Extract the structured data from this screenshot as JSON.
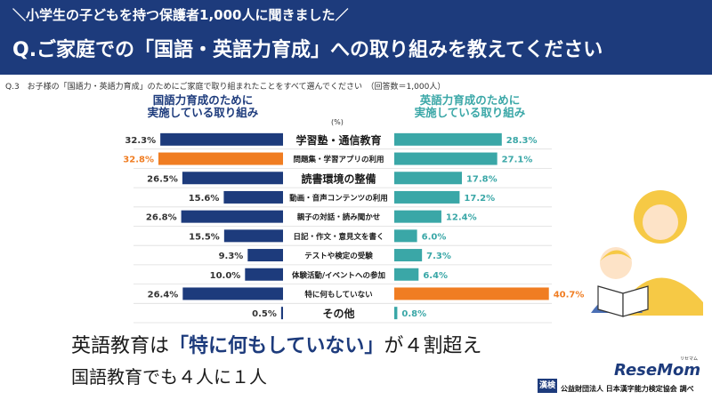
{
  "header": {
    "subtitle": "＼小学生の子どもを持つ保護者1,000人に聞きました／",
    "title": "Q.ご家庭での「国語・英語力育成」への取り組みを教えてください"
  },
  "question_note": "Q.3　お子様の「国語力・英語力育成」のためにご家庭で取り組まれたことをすべて選んでください　（回答数＝1,000人）",
  "chart_data": {
    "type": "bar",
    "unit": "(%)",
    "categories": [
      "学習塾・通信教育",
      "問題集・学習アプリの利用",
      "読書環境の整備",
      "動画・音声コンテンツの利用",
      "親子の対話・読み聞かせ",
      "日記・作文・意見文を書く",
      "テストや検定の受験",
      "体験活動/イベントへの参加",
      "特に何もしていない",
      "その他"
    ],
    "series": [
      {
        "name": "国語力育成のために実施している取り組み",
        "values": [
          32.3,
          32.8,
          26.5,
          15.6,
          26.8,
          15.5,
          9.3,
          10.0,
          26.4,
          0.5
        ],
        "labels": [
          "32.3%",
          "32.8%",
          "26.5%",
          "15.6%",
          "26.8%",
          "15.5%",
          "9.3%",
          "10.0%",
          "26.4%",
          "0.5%"
        ],
        "color": "#1d3b7c",
        "highlight_index": 1,
        "highlight_color": "#f07d22"
      },
      {
        "name": "英語力育成のために実施している取り組み",
        "values": [
          28.3,
          27.1,
          17.8,
          17.2,
          12.4,
          6.0,
          7.3,
          6.4,
          40.7,
          0.8
        ],
        "labels": [
          "28.3%",
          "27.1%",
          "17.8%",
          "17.2%",
          "12.4%",
          "6.0%",
          "7.3%",
          "6.4%",
          "40.7%",
          "0.8%"
        ],
        "color": "#3aa7a7",
        "highlight_index": 8,
        "highlight_color": "#f07d22"
      }
    ],
    "left_header": "国語力育成のために\n実施している取り組み",
    "right_header": "英語力育成のために\n実施している取り組み",
    "xlim": [
      0,
      41
    ]
  },
  "message": {
    "line1_pre": "英語教育は",
    "line1_highlight": "「特に何もしていない」",
    "line1_post": "が４割超え",
    "line2": "国語教育でも４人に１人"
  },
  "footer": {
    "credit": "公益財団法人 日本漢字能力検定協会 調べ",
    "kanken_mark": "漢検",
    "logo": "ReseMom",
    "logo_ruby": "リセマム"
  },
  "colors": {
    "navy": "#1d3b7c",
    "teal": "#3aa7a7",
    "orange": "#f07d22"
  }
}
